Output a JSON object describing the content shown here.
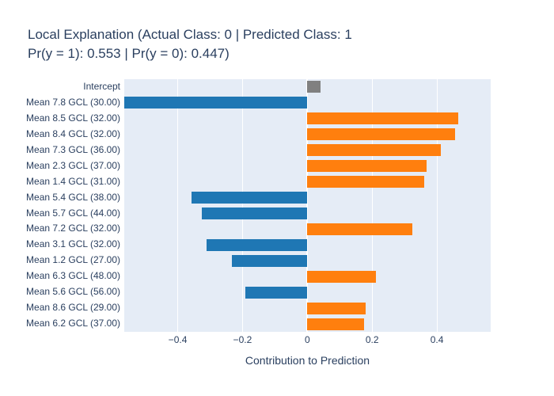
{
  "figure": {
    "background": "#ffffff"
  },
  "chart_data": {
    "type": "bar",
    "orientation": "horizontal",
    "title": "Local Explanation (Actual Class: 0 | Predicted Class: 1 Pr(y = 1): 0.553 | Pr(y = 0): 0.447)",
    "title_line1": "Local Explanation (Actual Class: 0 | Predicted Class: 1",
    "title_line2": "Pr(y = 1): 0.553 | Pr(y = 0): 0.447)",
    "xlabel": "Contribution to Prediction",
    "ylabel": "",
    "categories": [
      "Intercept",
      "Mean 7.8 GCL (30.00)",
      "Mean 8.5 GCL (32.00)",
      "Mean 8.4 GCL (32.00)",
      "Mean 7.3 GCL (36.00)",
      "Mean 2.3 GCL (37.00)",
      "Mean 1.4 GCL (31.00)",
      "Mean 5.4 GCL (38.00)",
      "Mean 5.7 GCL (44.00)",
      "Mean 7.2 GCL (32.00)",
      "Mean 3.1 GCL (32.00)",
      "Mean 1.2 GCL (27.00)",
      "Mean 6.3 GCL (48.00)",
      "Mean 5.6 GCL (56.00)",
      "Mean 8.6 GCL (29.00)",
      "Mean 6.2 GCL (37.00)"
    ],
    "values": [
      0.042,
      -0.565,
      0.465,
      0.455,
      0.413,
      0.368,
      0.361,
      -0.358,
      -0.326,
      0.324,
      -0.312,
      -0.233,
      0.211,
      -0.192,
      0.181,
      0.174
    ],
    "bar_colors": [
      "#808080",
      "#1f77b4",
      "#ff7f0e",
      "#ff7f0e",
      "#ff7f0e",
      "#ff7f0e",
      "#ff7f0e",
      "#1f77b4",
      "#1f77b4",
      "#ff7f0e",
      "#1f77b4",
      "#1f77b4",
      "#ff7f0e",
      "#1f77b4",
      "#ff7f0e",
      "#ff7f0e"
    ],
    "colors": {
      "positive": "#ff7f0e",
      "negative": "#1f77b4",
      "intercept": "#808080",
      "plot_background": "#e5ecf6",
      "grid": "#ffffff",
      "text": "#2a3f5f"
    },
    "xlim": [
      -0.565,
      0.566
    ],
    "x_ticks": [
      -0.4,
      -0.2,
      0,
      0.2,
      0.4
    ],
    "x_tick_labels": [
      "−0.4",
      "−0.2",
      "0",
      "0.2",
      "0.4"
    ],
    "grid": true,
    "legend": false
  }
}
